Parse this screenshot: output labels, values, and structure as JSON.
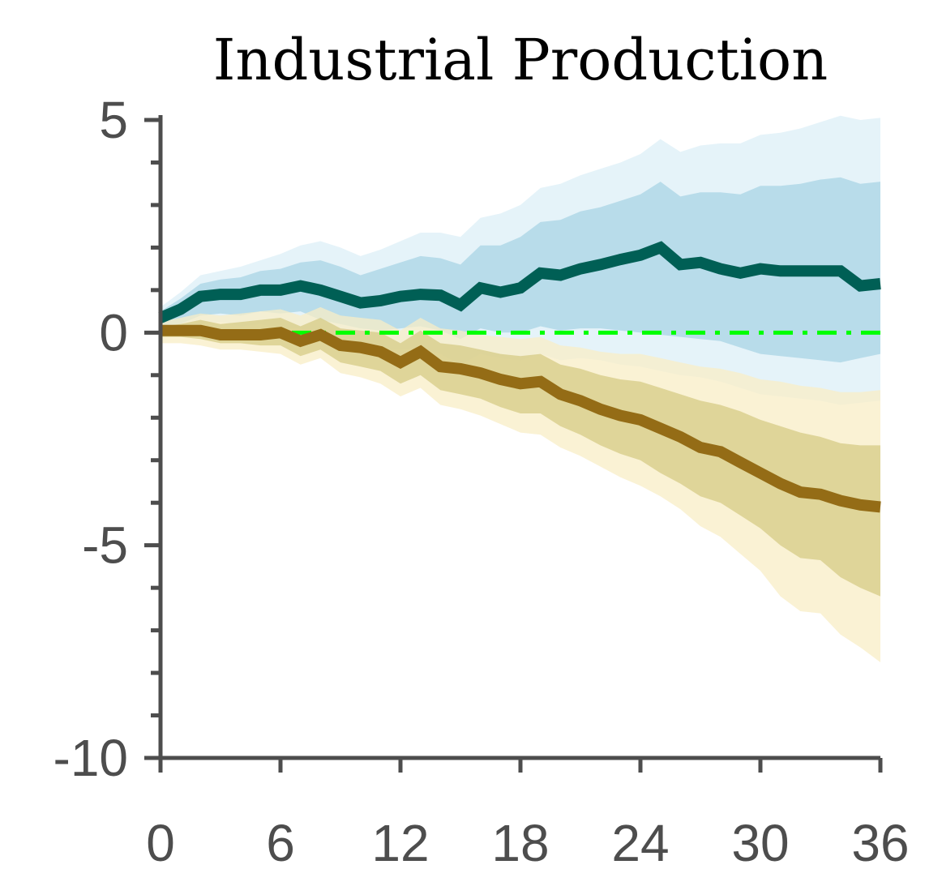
{
  "chart_data": {
    "type": "line",
    "title": "Industrial Production",
    "xlabel": "",
    "ylabel": "",
    "xlim": [
      0,
      36
    ],
    "ylim": [
      -10,
      5
    ],
    "x_ticks": [
      "0",
      "6",
      "12",
      "18",
      "24",
      "30",
      "36"
    ],
    "y_ticks": [
      "5",
      "0",
      "-5",
      "-10"
    ],
    "grid": false,
    "legend": "none",
    "x": [
      0,
      1,
      2,
      3,
      4,
      5,
      6,
      7,
      8,
      9,
      10,
      11,
      12,
      13,
      14,
      15,
      16,
      17,
      18,
      19,
      20,
      21,
      22,
      23,
      24,
      25,
      26,
      27,
      28,
      29,
      30,
      31,
      32,
      33,
      34,
      35,
      36
    ],
    "series": [
      {
        "color": "#005f55",
        "band_outer_color": "#e5f3f9",
        "band_inner_color": "#b8dcea",
        "values": [
          0.35,
          0.55,
          0.85,
          0.9,
          0.9,
          1.0,
          1.0,
          1.1,
          1.0,
          0.85,
          0.7,
          0.75,
          0.85,
          0.9,
          0.88,
          0.65,
          1.05,
          0.95,
          1.05,
          1.4,
          1.35,
          1.5,
          1.6,
          1.72,
          1.82,
          2.0,
          1.6,
          1.65,
          1.5,
          1.4,
          1.5,
          1.45,
          1.45,
          1.45,
          1.45,
          1.1,
          1.15
        ],
        "band_inner": {
          "lower": [
            0.15,
            0.2,
            0.4,
            0.45,
            0.4,
            0.5,
            0.45,
            0.5,
            0.3,
            0.2,
            0.1,
            0.05,
            0.1,
            0.15,
            0.05,
            -0.15,
            0.1,
            0.0,
            0.0,
            0.15,
            0.05,
            0.1,
            0.1,
            0.05,
            0.0,
            -0.05,
            -0.1,
            -0.15,
            -0.2,
            -0.35,
            -0.5,
            -0.55,
            -0.6,
            -0.65,
            -0.7,
            -0.6,
            -0.5
          ],
          "upper": [
            0.5,
            0.8,
            1.15,
            1.25,
            1.3,
            1.45,
            1.5,
            1.65,
            1.7,
            1.55,
            1.35,
            1.5,
            1.65,
            1.8,
            1.75,
            1.6,
            2.05,
            2.05,
            2.25,
            2.6,
            2.65,
            2.85,
            2.95,
            3.1,
            3.25,
            3.55,
            3.2,
            3.3,
            3.3,
            3.25,
            3.45,
            3.45,
            3.5,
            3.6,
            3.65,
            3.5,
            3.55
          ]
        },
        "band_outer": {
          "lower": [
            0.05,
            0.05,
            0.2,
            0.25,
            0.15,
            0.2,
            0.1,
            0.1,
            -0.1,
            -0.2,
            -0.3,
            -0.4,
            -0.4,
            -0.35,
            -0.5,
            -0.75,
            -0.5,
            -0.6,
            -0.65,
            -0.5,
            -0.65,
            -0.6,
            -0.65,
            -0.75,
            -0.8,
            -0.9,
            -1.0,
            -1.05,
            -1.15,
            -1.3,
            -1.45,
            -1.5,
            -1.55,
            -1.6,
            -1.7,
            -1.65,
            -1.6
          ],
          "upper": [
            0.6,
            0.95,
            1.35,
            1.45,
            1.55,
            1.7,
            1.85,
            2.05,
            2.15,
            2.0,
            1.8,
            1.95,
            2.15,
            2.35,
            2.35,
            2.25,
            2.7,
            2.8,
            3.0,
            3.4,
            3.5,
            3.7,
            3.85,
            4.0,
            4.2,
            4.55,
            4.25,
            4.4,
            4.45,
            4.45,
            4.65,
            4.7,
            4.8,
            4.95,
            5.1,
            5.0,
            5.05
          ]
        }
      },
      {
        "color": "#946c16",
        "band_outer_color": "#f8edc6",
        "band_inner_color": "#d6cb86",
        "values": [
          0.05,
          0.05,
          0.05,
          -0.05,
          -0.05,
          -0.05,
          0.0,
          -0.2,
          -0.05,
          -0.3,
          -0.35,
          -0.45,
          -0.7,
          -0.45,
          -0.8,
          -0.85,
          -0.95,
          -1.1,
          -1.2,
          -1.15,
          -1.45,
          -1.6,
          -1.8,
          -1.95,
          -2.05,
          -2.25,
          -2.45,
          -2.7,
          -2.8,
          -3.05,
          -3.3,
          -3.55,
          -3.75,
          -3.8,
          -3.95,
          -4.05,
          -4.1
        ],
        "band_inner": {
          "lower": [
            -0.1,
            -0.1,
            -0.15,
            -0.25,
            -0.25,
            -0.3,
            -0.3,
            -0.55,
            -0.4,
            -0.7,
            -0.8,
            -0.9,
            -1.2,
            -1.0,
            -1.35,
            -1.45,
            -1.55,
            -1.75,
            -1.9,
            -1.9,
            -2.2,
            -2.4,
            -2.65,
            -2.85,
            -3.0,
            -3.3,
            -3.55,
            -3.85,
            -4.0,
            -4.3,
            -4.6,
            -5.0,
            -5.3,
            -5.35,
            -5.75,
            -6.0,
            -6.2
          ],
          "upper": [
            0.15,
            0.2,
            0.3,
            0.2,
            0.25,
            0.3,
            0.35,
            0.15,
            0.35,
            0.1,
            0.05,
            0.0,
            -0.25,
            0.05,
            -0.25,
            -0.3,
            -0.4,
            -0.5,
            -0.55,
            -0.5,
            -0.75,
            -0.85,
            -1.0,
            -1.1,
            -1.15,
            -1.3,
            -1.45,
            -1.6,
            -1.7,
            -1.85,
            -2.05,
            -2.2,
            -2.35,
            -2.45,
            -2.6,
            -2.65,
            -2.65
          ]
        },
        "band_outer": {
          "lower": [
            -0.25,
            -0.25,
            -0.3,
            -0.4,
            -0.4,
            -0.45,
            -0.5,
            -0.75,
            -0.6,
            -0.95,
            -1.05,
            -1.2,
            -1.5,
            -1.3,
            -1.7,
            -1.8,
            -1.95,
            -2.15,
            -2.35,
            -2.4,
            -2.7,
            -2.9,
            -3.15,
            -3.4,
            -3.6,
            -3.85,
            -4.15,
            -4.55,
            -4.8,
            -5.2,
            -5.6,
            -6.2,
            -6.55,
            -6.6,
            -7.1,
            -7.4,
            -7.75
          ],
          "upper": [
            0.25,
            0.35,
            0.45,
            0.4,
            0.45,
            0.5,
            0.55,
            0.4,
            0.6,
            0.4,
            0.35,
            0.3,
            0.05,
            0.35,
            0.1,
            0.05,
            -0.05,
            -0.1,
            -0.15,
            -0.1,
            -0.3,
            -0.35,
            -0.45,
            -0.5,
            -0.5,
            -0.6,
            -0.7,
            -0.8,
            -0.85,
            -0.95,
            -1.1,
            -1.15,
            -1.25,
            -1.3,
            -1.4,
            -1.4,
            -1.35
          ]
        }
      }
    ],
    "reference_line": {
      "y": 0,
      "color": "#00ff00",
      "style": "dash-dot"
    },
    "axis_color": "#4d4d4d"
  }
}
